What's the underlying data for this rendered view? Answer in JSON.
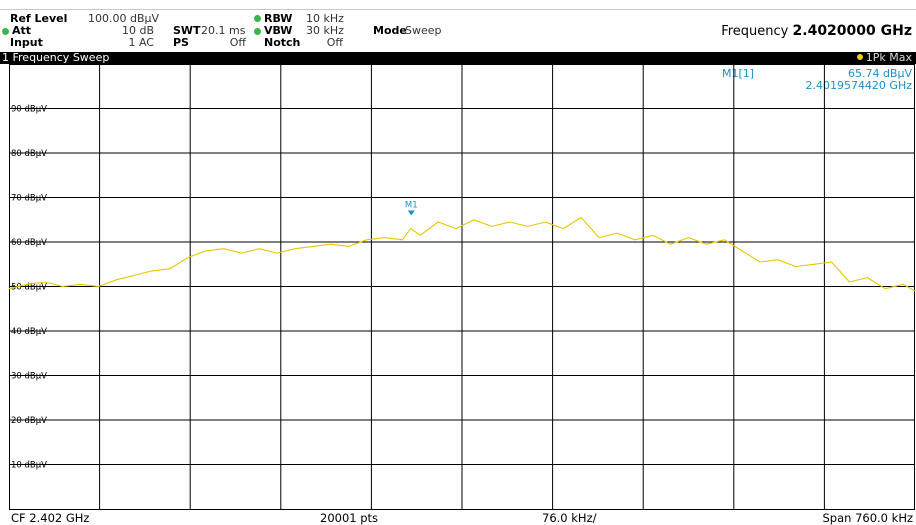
{
  "header": {
    "ref_level_label": "Ref Level",
    "ref_level_value": "100.00 dBµV",
    "att_label": "Att",
    "att_value": "10 dB",
    "swt_label": "SWT",
    "swt_value": "20.1 ms",
    "input_label": "Input",
    "input_value": "1 AC",
    "ps_label": "PS",
    "ps_value": "Off",
    "rbw_label": "RBW",
    "rbw_value": "10 kHz",
    "vbw_label": "VBW",
    "vbw_value": "30 kHz",
    "notch_label": "Notch",
    "notch_value": "Off",
    "mode_label": "Mode",
    "mode_value": "Sweep",
    "frequency_label": "Frequency",
    "frequency_value": "2.4020000 GHz",
    "indicator_color": "#3cb44b"
  },
  "window": {
    "title": "1 Frequency Sweep",
    "trace_label": "1Pk Max"
  },
  "marker": {
    "label": "M1",
    "table_name": "M1[1]",
    "level": "65.74 dBµV",
    "freq": "2.4019574420 GHz",
    "color": "#1e90c8"
  },
  "footer": {
    "cf": "CF 2.402 GHz",
    "points": "20001 pts",
    "div": "76.0 kHz/",
    "span": "Span 760.0 kHz"
  },
  "chart_data": {
    "type": "line",
    "title": "1 Frequency Sweep",
    "xlabel": "",
    "ylabel": "",
    "xunit": "GHz",
    "xlim": [
      2.40162,
      2.40238
    ],
    "ylim": [
      0,
      100
    ],
    "yticks": [
      {
        "v": 90,
        "label": "90 dBµV"
      },
      {
        "v": 80,
        "label": "80 dBµV"
      },
      {
        "v": 70,
        "label": "70 dBµV"
      },
      {
        "v": 60,
        "label": "60 dBµV"
      },
      {
        "v": 50,
        "label": "50 dBµV"
      },
      {
        "v": 40,
        "label": "40 dBµV"
      },
      {
        "v": 30,
        "label": "30 dBµV"
      },
      {
        "v": 20,
        "label": "20 dBµV"
      },
      {
        "v": 10,
        "label": "10 dBµV"
      }
    ],
    "grid": true,
    "trace_color": "#e8c800",
    "series": [
      {
        "name": "1Pk Max",
        "x": [
          2.40162,
          2.401635,
          2.40165,
          2.401665,
          2.40168,
          2.401695,
          2.40171,
          2.401725,
          2.40174,
          2.401755,
          2.40177,
          2.401785,
          2.4018,
          2.401815,
          2.40183,
          2.401845,
          2.40186,
          2.401875,
          2.40189,
          2.401905,
          2.40192,
          2.401935,
          2.40195,
          2.401957,
          2.401965,
          2.40198,
          2.401995,
          2.40201,
          2.402025,
          2.40204,
          2.402055,
          2.40207,
          2.402085,
          2.4021,
          2.402115,
          2.40213,
          2.402145,
          2.40216,
          2.402175,
          2.40219,
          2.402205,
          2.40222,
          2.402235,
          2.40225,
          2.402265,
          2.40228,
          2.402295,
          2.40231,
          2.402325,
          2.40234,
          2.402355,
          2.40237,
          2.40238
        ],
        "y": [
          49.5,
          50.5,
          51,
          50,
          50.5,
          50,
          51.5,
          52.5,
          53.5,
          54,
          56.5,
          58,
          58.5,
          57.5,
          58.5,
          57.5,
          58.5,
          59,
          59.5,
          59,
          60.5,
          61,
          60.5,
          63,
          61.5,
          64.5,
          63,
          65,
          63.5,
          64.5,
          63.5,
          64.5,
          63,
          65.5,
          61,
          62,
          60.5,
          61.5,
          59.5,
          61,
          59.5,
          60.5,
          58,
          55.5,
          56,
          54.5,
          55,
          55.5,
          51,
          52,
          49.5,
          50.5,
          49
        ]
      }
    ],
    "markers": [
      {
        "name": "M1",
        "x": 2.401957442,
        "y": 65.74
      }
    ]
  }
}
